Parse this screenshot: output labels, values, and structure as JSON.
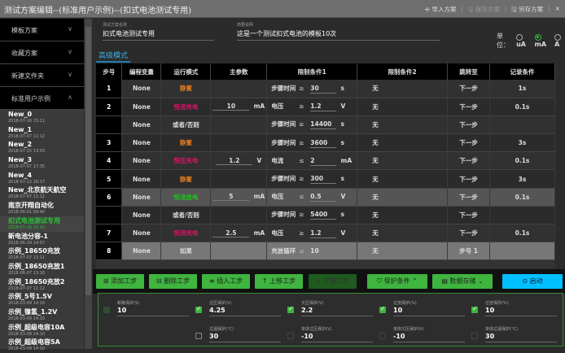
{
  "window": {
    "title": "测试方案编辑--(标准用户示例)--(扣式电池测试专用)",
    "import": "导入方案",
    "save": "保存方案",
    "save_as": "另存方案",
    "close": "×"
  },
  "sidebar": {
    "folders": [
      {
        "label": "模板方案",
        "chev": "∨"
      },
      {
        "label": "收藏方案",
        "chev": "∨"
      },
      {
        "label": "新建文件夹",
        "chev": "∨"
      },
      {
        "label": "标准用户示例",
        "chev": "∧"
      }
    ],
    "items": [
      {
        "name": "New_0",
        "date": "2018-07-16 15:11"
      },
      {
        "name": "New_1",
        "date": "2018-07-07 11:12"
      },
      {
        "name": "New_2",
        "date": "2018-07-15 13:03"
      },
      {
        "name": "New_3",
        "date": "2018-07-07 17:35"
      },
      {
        "name": "New_4",
        "date": "2018-07-12 16:17"
      },
      {
        "name": "New_北京航天航空",
        "date": "2018-07-07 11:12"
      },
      {
        "name": "南京开翔自动化",
        "date": "2018-06-01 09:40"
      },
      {
        "name": "扣式电池测试专用",
        "date": "2018-07-16 15:15",
        "selected": true
      },
      {
        "name": "新电池分容-1",
        "date": "2018-06-29 14:57"
      },
      {
        "name": "示例_18650充放",
        "date": "2018-07-07 11:11"
      },
      {
        "name": "示例_18650充放1",
        "date": "2018-06-07 13:18"
      },
      {
        "name": "示例_18650充放2",
        "date": "2018-07-07 11:12"
      },
      {
        "name": "示例_5号1.5V",
        "date": "2018-03-09 14:10"
      },
      {
        "name": "示例_镍氢_1.2V",
        "date": "2018-03-09 14:10"
      },
      {
        "name": "示例_超级电容10A",
        "date": "2018-03-09 14:10"
      },
      {
        "name": "示例_超级电容5A",
        "date": "2018-03-09 14:10"
      }
    ]
  },
  "form": {
    "name_label": "测试方案名称",
    "name_value": "扣式电池测试专用",
    "desc_label": "简要说明",
    "desc_value": "这是一个测试扣式电池的模板10次",
    "unit_label": "单位：",
    "units": [
      "uA",
      "mA",
      "A"
    ],
    "unit_selected": "mA",
    "tab": "高级模式"
  },
  "table": {
    "headers": [
      "步号",
      "编程变量",
      "运行模式",
      "主参数",
      "限制条件1",
      "限制条件2",
      "跳转至",
      "记录条件"
    ],
    "rows": [
      {
        "no": "1",
        "var": "None",
        "mode": "静置",
        "mc": "#e07a20",
        "main": "",
        "mu": "",
        "c1": "步骤时间",
        "op": "≥",
        "cv": "30",
        "cu": "s",
        "c2": "无",
        "jump": "下一步",
        "rec": "1s",
        "cls": "r"
      },
      {
        "no": "2",
        "var": "None",
        "mode": "恒流充电",
        "mc": "#e0106a",
        "main": "10",
        "mu": "mA",
        "c1": "电压",
        "op": "≥",
        "cv": "1.2",
        "cu": "V",
        "c2": "无",
        "jump": "下一步",
        "rec": "0.1s",
        "cls": ""
      },
      {
        "no": "",
        "var": "None",
        "mode": "或者/否则",
        "mc": "#ddd",
        "main": "",
        "mu": "",
        "c1": "步骤时间",
        "op": "≥",
        "cv": "14400",
        "cu": "s",
        "c2": "无",
        "jump": "下一步",
        "rec": "",
        "cls": "r"
      },
      {
        "no": "3",
        "var": "None",
        "mode": "静置",
        "mc": "#e07a20",
        "main": "",
        "mu": "",
        "c1": "步骤时间",
        "op": "≥",
        "cv": "3600",
        "cu": "s",
        "c2": "无",
        "jump": "下一步",
        "rec": "3s",
        "cls": ""
      },
      {
        "no": "4",
        "var": "None",
        "mode": "恒压充电",
        "mc": "#e0106a",
        "main": "1.2",
        "mu": "V",
        "c1": "电流",
        "op": "≤",
        "cv": "2",
        "cu": "mA",
        "c2": "无",
        "jump": "下一步",
        "rec": "0.1s",
        "cls": "r"
      },
      {
        "no": "5",
        "var": "None",
        "mode": "静置",
        "mc": "#e07a20",
        "main": "",
        "mu": "",
        "c1": "步骤时间",
        "op": "≥",
        "cv": "300",
        "cu": "s",
        "c2": "无",
        "jump": "下一步",
        "rec": "3s",
        "cls": ""
      },
      {
        "no": "6",
        "var": "None",
        "mode": "恒流放电",
        "mc": "#20c020",
        "main": "5",
        "mu": "mA",
        "c1": "电压",
        "op": "≤",
        "cv": "0.5",
        "cu": "V",
        "c2": "无",
        "jump": "下一步",
        "rec": "0.1s",
        "cls": "h"
      },
      {
        "no": "",
        "var": "None",
        "mode": "或者/否则",
        "mc": "#ddd",
        "main": "",
        "mu": "",
        "c1": "步骤时间",
        "op": "≥",
        "cv": "5400",
        "cu": "s",
        "c2": "无",
        "jump": "下一步",
        "rec": "",
        "cls": ""
      },
      {
        "no": "7",
        "var": "None",
        "mode": "恒流充电",
        "mc": "#e0106a",
        "main": "2.5",
        "mu": "mA",
        "c1": "电压",
        "op": "≥",
        "cv": "1.2",
        "cu": "V",
        "c2": "无",
        "jump": "下一步",
        "rec": "0.1s",
        "cls": "r"
      },
      {
        "no": "8",
        "var": "None",
        "mode": "如果",
        "mc": "#ddd",
        "main": "",
        "mu": "",
        "c1": "充放循环",
        "op": "≤",
        "cv": "10",
        "cu": "",
        "c2": "无",
        "jump": "步号 1",
        "rec": "",
        "cls": "g"
      }
    ]
  },
  "buttons": {
    "add": "添加工步",
    "delete": "删除工步",
    "insert": "插入工步",
    "up": "上移工步",
    "down": "下移工步",
    "protect": "保护条件",
    "storage": "数据存储",
    "start": "启动"
  },
  "protection": [
    {
      "label": "断路保护(S)",
      "value": "10",
      "checked": "dim"
    },
    {
      "label": "过压保护(V)",
      "value": "4.25",
      "checked": "on"
    },
    {
      "label": "欠压保护(V)",
      "value": "2.2",
      "checked": "on"
    },
    {
      "label": "过流保护(%)",
      "value": "10",
      "checked": "on"
    },
    {
      "label": "过容保护(%)",
      "value": "10",
      "checked": "on"
    },
    {
      "label": "过温保护(°C)",
      "value": "30",
      "checked": "off"
    },
    {
      "label": "单体过压保护(V)",
      "value": "-10",
      "checked": "off2"
    },
    {
      "label": "单体欠压保护(V)",
      "value": "-10",
      "checked": "off2"
    },
    {
      "label": "单体过温保护(°C)",
      "value": "30",
      "checked": "off2"
    }
  ]
}
